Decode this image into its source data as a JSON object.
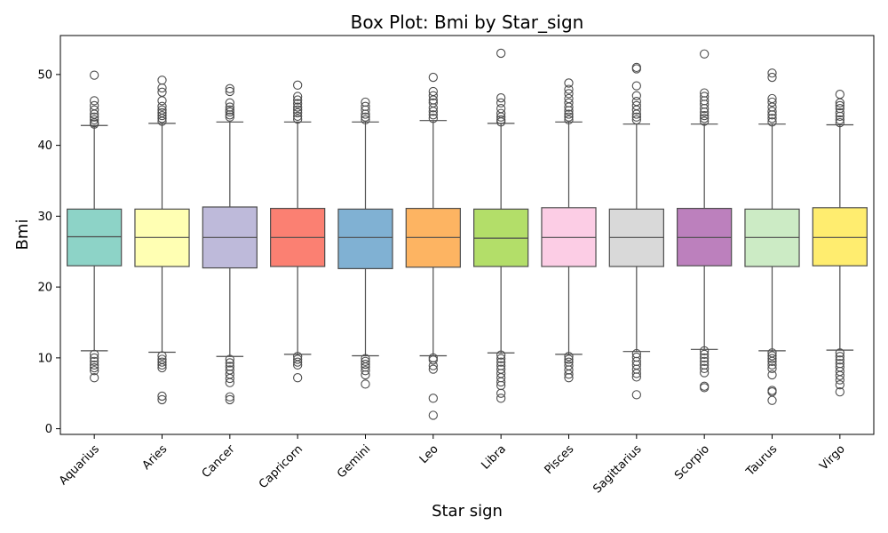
{
  "chart_data": {
    "type": "box",
    "title": "Box Plot: Bmi by Star_sign",
    "xlabel": "Star sign",
    "ylabel": "Bmi",
    "ylim": [
      -0.8,
      55.5
    ],
    "yticks": [
      0,
      10,
      20,
      30,
      40,
      50
    ],
    "grid": false,
    "legend": "none",
    "categories": [
      "Aquarius",
      "Aries",
      "Cancer",
      "Capricorn",
      "Gemini",
      "Leo",
      "Libra",
      "Pisces",
      "Sagittarius",
      "Scorpio",
      "Taurus",
      "Virgo"
    ],
    "colors": [
      "#8dd3c7",
      "#ffffb3",
      "#bebada",
      "#fb8072",
      "#80b1d3",
      "#fdb462",
      "#b3de69",
      "#fccde5",
      "#d9d9d9",
      "#bc80bd",
      "#ccebc5",
      "#ffed6f"
    ],
    "boxes": [
      {
        "q1": 23.0,
        "median": 27.1,
        "q3": 31.0,
        "whislo": 11.0,
        "whishi": 42.8,
        "fliers": [
          49.9,
          46.3,
          45.6,
          45.0,
          44.4,
          44.0,
          43.6,
          43.2,
          43.0,
          10.5,
          10.0,
          9.5,
          9.0,
          8.6,
          8.2,
          7.2
        ]
      },
      {
        "q1": 22.9,
        "median": 27.0,
        "q3": 31.0,
        "whislo": 10.8,
        "whishi": 43.1,
        "fliers": [
          49.2,
          48.1,
          47.5,
          46.3,
          45.5,
          45.0,
          44.6,
          44.2,
          43.8,
          43.4,
          10.3,
          9.8,
          9.4,
          9.0,
          8.6,
          4.6,
          4.1
        ]
      },
      {
        "q1": 22.7,
        "median": 27.0,
        "q3": 31.3,
        "whislo": 10.2,
        "whishi": 43.3,
        "fliers": [
          48.0,
          47.6,
          46.0,
          45.4,
          45.0,
          44.7,
          44.3,
          44.0,
          9.8,
          9.3,
          8.8,
          8.3,
          7.7,
          7.1,
          6.5,
          4.5,
          4.1
        ]
      },
      {
        "q1": 22.9,
        "median": 27.0,
        "q3": 31.1,
        "whislo": 10.5,
        "whishi": 43.3,
        "fliers": [
          48.5,
          46.9,
          46.4,
          45.9,
          45.4,
          45.0,
          44.6,
          44.1,
          43.7,
          10.2,
          9.8,
          9.4,
          9.0,
          7.2
        ]
      },
      {
        "q1": 22.6,
        "median": 27.0,
        "q3": 31.0,
        "whislo": 10.3,
        "whishi": 43.3,
        "fliers": [
          46.1,
          45.5,
          45.0,
          44.4,
          44.0,
          43.6,
          9.9,
          9.5,
          9.1,
          8.7,
          8.2,
          7.6,
          6.3
        ]
      },
      {
        "q1": 22.8,
        "median": 27.0,
        "q3": 31.1,
        "whislo": 10.3,
        "whishi": 43.5,
        "fliers": [
          49.6,
          47.6,
          47.0,
          46.4,
          46.0,
          45.3,
          44.8,
          44.3,
          43.8,
          10.0,
          9.7,
          8.9,
          8.4,
          4.3,
          1.9
        ]
      },
      {
        "q1": 22.9,
        "median": 26.9,
        "q3": 31.0,
        "whislo": 10.7,
        "whishi": 43.1,
        "fliers": [
          53.0,
          46.7,
          46.0,
          45.2,
          44.5,
          44.0,
          43.6,
          43.3,
          10.4,
          9.9,
          9.4,
          8.9,
          8.4,
          7.8,
          7.2,
          6.6,
          6.1,
          5.0,
          4.3
        ]
      },
      {
        "q1": 22.9,
        "median": 27.0,
        "q3": 31.2,
        "whislo": 10.5,
        "whishi": 43.3,
        "fliers": [
          48.8,
          47.9,
          47.3,
          46.6,
          46.0,
          45.4,
          44.9,
          44.4,
          44.0,
          43.6,
          10.2,
          9.8,
          9.4,
          8.9,
          8.3,
          7.7,
          7.2
        ]
      },
      {
        "q1": 22.9,
        "median": 27.0,
        "q3": 31.0,
        "whislo": 10.9,
        "whishi": 43.0,
        "fliers": [
          51.0,
          50.8,
          48.4,
          47.0,
          46.2,
          45.6,
          45.0,
          44.4,
          44.0,
          43.6,
          10.6,
          10.1,
          9.5,
          9.0,
          8.4,
          7.8,
          7.3,
          4.8
        ]
      },
      {
        "q1": 23.0,
        "median": 27.0,
        "q3": 31.1,
        "whislo": 11.2,
        "whishi": 43.0,
        "fliers": [
          52.9,
          47.4,
          46.9,
          46.3,
          45.8,
          45.2,
          44.7,
          44.2,
          43.8,
          43.4,
          11.0,
          10.5,
          10.0,
          9.5,
          9.0,
          8.5,
          7.9,
          6.0,
          5.8
        ]
      },
      {
        "q1": 22.9,
        "median": 27.0,
        "q3": 31.0,
        "whislo": 11.0,
        "whishi": 43.0,
        "fliers": [
          50.2,
          49.6,
          46.6,
          46.1,
          45.4,
          44.8,
          44.3,
          43.8,
          43.3,
          10.7,
          10.3,
          9.9,
          9.5,
          9.0,
          8.5,
          7.6,
          5.4,
          5.2,
          4.0
        ]
      },
      {
        "q1": 23.0,
        "median": 27.0,
        "q3": 31.2,
        "whislo": 11.1,
        "whishi": 42.9,
        "fliers": [
          47.2,
          46.0,
          45.6,
          45.2,
          44.6,
          44.1,
          43.6,
          43.2,
          10.7,
          10.2,
          9.7,
          9.2,
          8.7,
          8.1,
          7.5,
          6.9,
          6.2,
          5.2
        ]
      }
    ]
  }
}
